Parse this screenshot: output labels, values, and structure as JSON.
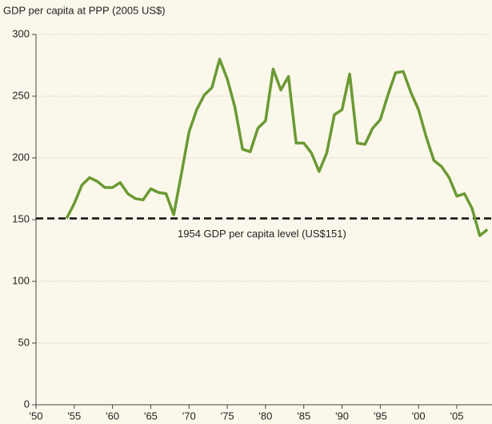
{
  "chart_data": {
    "type": "line",
    "y_axis_label": "GDP per capita at PPP (2005 US$)",
    "x": [
      1954,
      1955,
      1956,
      1957,
      1958,
      1959,
      1960,
      1961,
      1962,
      1963,
      1964,
      1965,
      1966,
      1967,
      1968,
      1969,
      1970,
      1971,
      1972,
      1973,
      1974,
      1975,
      1976,
      1977,
      1978,
      1979,
      1980,
      1981,
      1982,
      1983,
      1984,
      1985,
      1986,
      1987,
      1988,
      1989,
      1990,
      1991,
      1992,
      1993,
      1994,
      1995,
      1996,
      1997,
      1998,
      1999,
      2000,
      2001,
      2002,
      2003,
      2004,
      2005,
      2006,
      2007,
      2008,
      2009
    ],
    "series": [
      {
        "name": "GDP per capita",
        "color": "#6a9a34",
        "values": [
          151,
          163,
          178,
          184,
          181,
          176,
          176,
          180,
          171,
          167,
          166,
          175,
          172,
          171,
          154,
          187,
          221,
          239,
          251,
          257,
          280,
          264,
          241,
          207,
          205,
          224,
          230,
          272,
          255,
          266,
          212,
          212,
          204,
          189,
          204,
          235,
          239,
          268,
          212,
          211,
          224,
          231,
          251,
          269,
          270,
          253,
          239,
          217,
          198,
          193,
          184,
          169,
          171,
          159,
          137,
          142
        ]
      }
    ],
    "reference_line": {
      "value": 151,
      "label": "1954 GDP per capita level (US$151)"
    },
    "xlim": [
      1950,
      2009.6
    ],
    "xticks": [
      {
        "value": 1950,
        "label": "'50"
      },
      {
        "value": 1955,
        "label": "'55"
      },
      {
        "value": 1960,
        "label": "'60"
      },
      {
        "value": 1965,
        "label": "'65"
      },
      {
        "value": 1970,
        "label": "'70"
      },
      {
        "value": 1975,
        "label": "'75"
      },
      {
        "value": 1980,
        "label": "'80"
      },
      {
        "value": 1985,
        "label": "'85"
      },
      {
        "value": 1990,
        "label": "'90"
      },
      {
        "value": 1995,
        "label": "'95"
      },
      {
        "value": 2000,
        "label": "'00"
      },
      {
        "value": 2005,
        "label": "'05"
      }
    ],
    "ylim": [
      0,
      300
    ],
    "yticks": [
      0,
      50,
      100,
      150,
      200,
      250,
      300
    ],
    "grid": true
  }
}
